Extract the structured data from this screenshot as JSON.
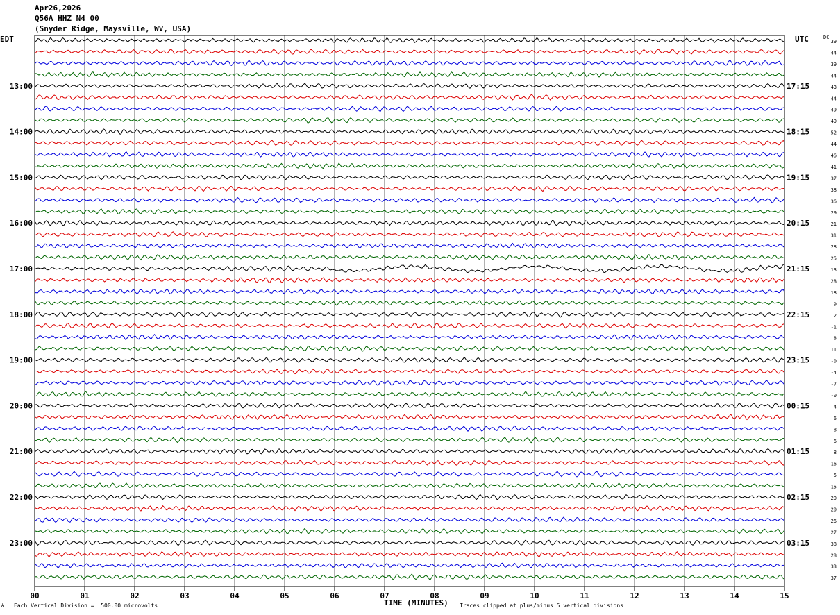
{
  "header": {
    "date": "Apr26,2026",
    "station": "Q56A HHZ N4 00",
    "location": "(Snyder Ridge, Maysville, WV, USA)"
  },
  "footer": {
    "scale_note": "Each Vertical Division =  500.00 microvolts",
    "clip_note": "Traces clipped at plus/minus 5 vertical divisions",
    "corner_mark": "A"
  },
  "chart_data": {
    "type": "line",
    "title": "",
    "xlabel": "TIME (MINUTES)",
    "x_ticks": [
      "00",
      "01",
      "02",
      "03",
      "04",
      "05",
      "06",
      "07",
      "08",
      "09",
      "10",
      "11",
      "12",
      "13",
      "14",
      "15"
    ],
    "xlim": [
      0,
      15
    ],
    "left_axis_title": "EDT",
    "right_axis_title": "UTC",
    "dc_title": "DC",
    "left_hour_labels": [
      "13:00",
      "14:00",
      "15:00",
      "16:00",
      "17:00",
      "18:00",
      "19:00",
      "20:00",
      "21:00",
      "22:00",
      "23:00"
    ],
    "right_hour_labels": [
      "17:15",
      "18:15",
      "19:15",
      "20:15",
      "21:15",
      "22:15",
      "23:15",
      "00:15",
      "01:15",
      "02:15",
      "03:15"
    ],
    "dc_offsets": [
      "39",
      "44",
      "39",
      "44",
      "43",
      "44",
      "49",
      "49",
      "52",
      "44",
      "46",
      "41",
      "37",
      "38",
      "36",
      "29",
      "21",
      "31",
      "28",
      "25",
      "13",
      "28",
      "18",
      "9",
      "2",
      "-1",
      "8",
      "11",
      "-0",
      "-4",
      "-7",
      "-0",
      "4",
      "6",
      "8",
      "6",
      "8",
      "16",
      "5",
      "15",
      "20",
      "20",
      "26",
      "27",
      "38",
      "28",
      "33",
      "37"
    ],
    "trace_colors": [
      "#000000",
      "#dd0000",
      "#0000dd",
      "#006600"
    ],
    "grid": true
  }
}
